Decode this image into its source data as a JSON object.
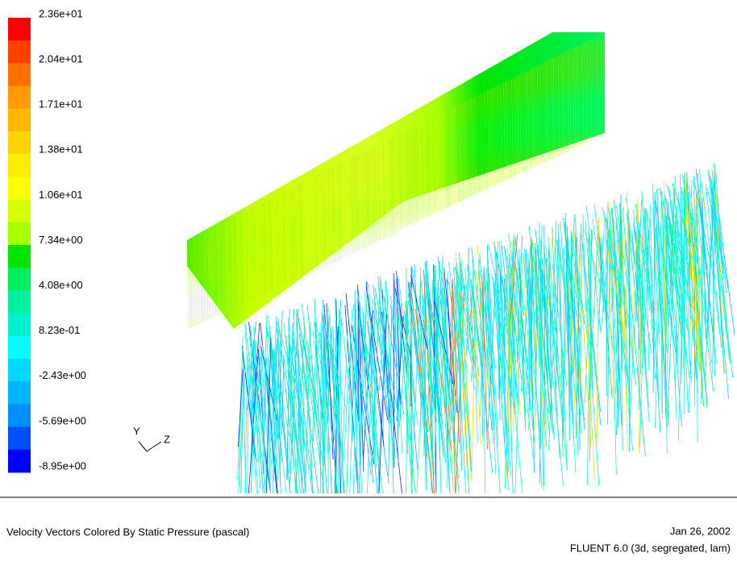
{
  "colorbar": {
    "labels": [
      "2.36e+01",
      "2.04e+01",
      "1.71e+01",
      "1.38e+01",
      "1.06e+01",
      "7.34e+00",
      "4.08e+00",
      "8.23e-01",
      "-2.43e+00",
      "-5.69e+00",
      "-8.95e+00"
    ]
  },
  "triad": {
    "y": "Y",
    "z": "Z"
  },
  "footer": {
    "title": "Velocity Vectors Colored By Static Pressure (pascal)",
    "date": "Jan 26, 2002",
    "solver": "FLUENT 6.0 (3d, segregated, lam)"
  }
}
